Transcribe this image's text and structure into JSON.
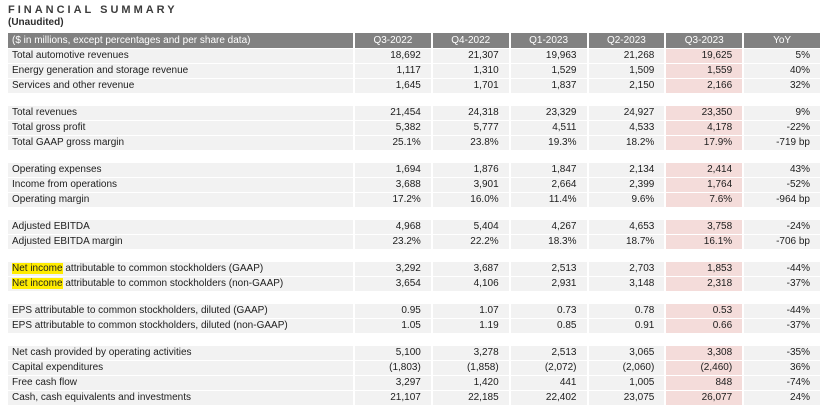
{
  "title": "FINANCIAL SUMMARY",
  "subtitle": "(Unaudited)",
  "colors": {
    "header_bg": "#818181",
    "header_text": "#ffffff",
    "row_bg": "#f2f2f2",
    "current_quarter_col_bg": "#f4dcda",
    "search_highlight": "#ffec00"
  },
  "table": {
    "label_header": "($ in millions, except percentages and per share data)",
    "column_headers": [
      "Q3-2022",
      "Q4-2022",
      "Q1-2023",
      "Q2-2023",
      "Q3-2023",
      "YoY"
    ],
    "highlighted_column": "Q3-2023",
    "sections": [
      {
        "rows": [
          {
            "label": "Total automotive revenues",
            "values": [
              "18,692",
              "21,307",
              "19,963",
              "21,268",
              "19,625",
              "5%"
            ]
          },
          {
            "label": "Energy generation and storage revenue",
            "values": [
              "1,117",
              "1,310",
              "1,529",
              "1,509",
              "1,559",
              "40%"
            ]
          },
          {
            "label": "Services and other revenue",
            "values": [
              "1,645",
              "1,701",
              "1,837",
              "2,150",
              "2,166",
              "32%"
            ]
          }
        ]
      },
      {
        "rows": [
          {
            "label": "Total revenues",
            "values": [
              "21,454",
              "24,318",
              "23,329",
              "24,927",
              "23,350",
              "9%"
            ]
          },
          {
            "label": "Total gross profit",
            "values": [
              "5,382",
              "5,777",
              "4,511",
              "4,533",
              "4,178",
              "-22%"
            ]
          },
          {
            "label": "Total GAAP gross margin",
            "values": [
              "25.1%",
              "23.8%",
              "19.3%",
              "18.2%",
              "17.9%",
              "-719 bp"
            ]
          }
        ]
      },
      {
        "rows": [
          {
            "label": "Operating expenses",
            "values": [
              "1,694",
              "1,876",
              "1,847",
              "2,134",
              "2,414",
              "43%"
            ]
          },
          {
            "label": "Income from operations",
            "values": [
              "3,688",
              "3,901",
              "2,664",
              "2,399",
              "1,764",
              "-52%"
            ]
          },
          {
            "label": "Operating margin",
            "values": [
              "17.2%",
              "16.0%",
              "11.4%",
              "9.6%",
              "7.6%",
              "-964 bp"
            ]
          }
        ]
      },
      {
        "rows": [
          {
            "label": "Adjusted EBITDA",
            "values": [
              "4,968",
              "5,404",
              "4,267",
              "4,653",
              "3,758",
              "-24%"
            ]
          },
          {
            "label": "Adjusted EBITDA margin",
            "values": [
              "23.2%",
              "22.2%",
              "18.3%",
              "18.7%",
              "16.1%",
              "-706 bp"
            ]
          }
        ]
      },
      {
        "rows": [
          {
            "label": "Net income attributable to common stockholders (GAAP)",
            "highlight_text": "Net income",
            "values": [
              "3,292",
              "3,687",
              "2,513",
              "2,703",
              "1,853",
              "-44%"
            ]
          },
          {
            "label": "Net income attributable to common stockholders (non-GAAP)",
            "highlight_text": "Net income",
            "values": [
              "3,654",
              "4,106",
              "2,931",
              "3,148",
              "2,318",
              "-37%"
            ]
          }
        ]
      },
      {
        "rows": [
          {
            "label": "EPS attributable to common stockholders, diluted (GAAP)",
            "values": [
              "0.95",
              "1.07",
              "0.73",
              "0.78",
              "0.53",
              "-44%"
            ]
          },
          {
            "label": "EPS attributable to common stockholders, diluted (non-GAAP)",
            "values": [
              "1.05",
              "1.19",
              "0.85",
              "0.91",
              "0.66",
              "-37%"
            ]
          }
        ]
      },
      {
        "rows": [
          {
            "label": "Net cash provided by operating activities",
            "values": [
              "5,100",
              "3,278",
              "2,513",
              "3,065",
              "3,308",
              "-35%"
            ]
          },
          {
            "label": "Capital expenditures",
            "values": [
              "(1,803)",
              "(1,858)",
              "(2,072)",
              "(2,060)",
              "(2,460)",
              "36%"
            ]
          },
          {
            "label": "Free cash flow",
            "values": [
              "3,297",
              "1,420",
              "441",
              "1,005",
              "848",
              "-74%"
            ]
          },
          {
            "label": "Cash, cash equivalents and investments",
            "values": [
              "21,107",
              "22,185",
              "22,402",
              "23,075",
              "26,077",
              "24%"
            ]
          }
        ]
      }
    ]
  }
}
